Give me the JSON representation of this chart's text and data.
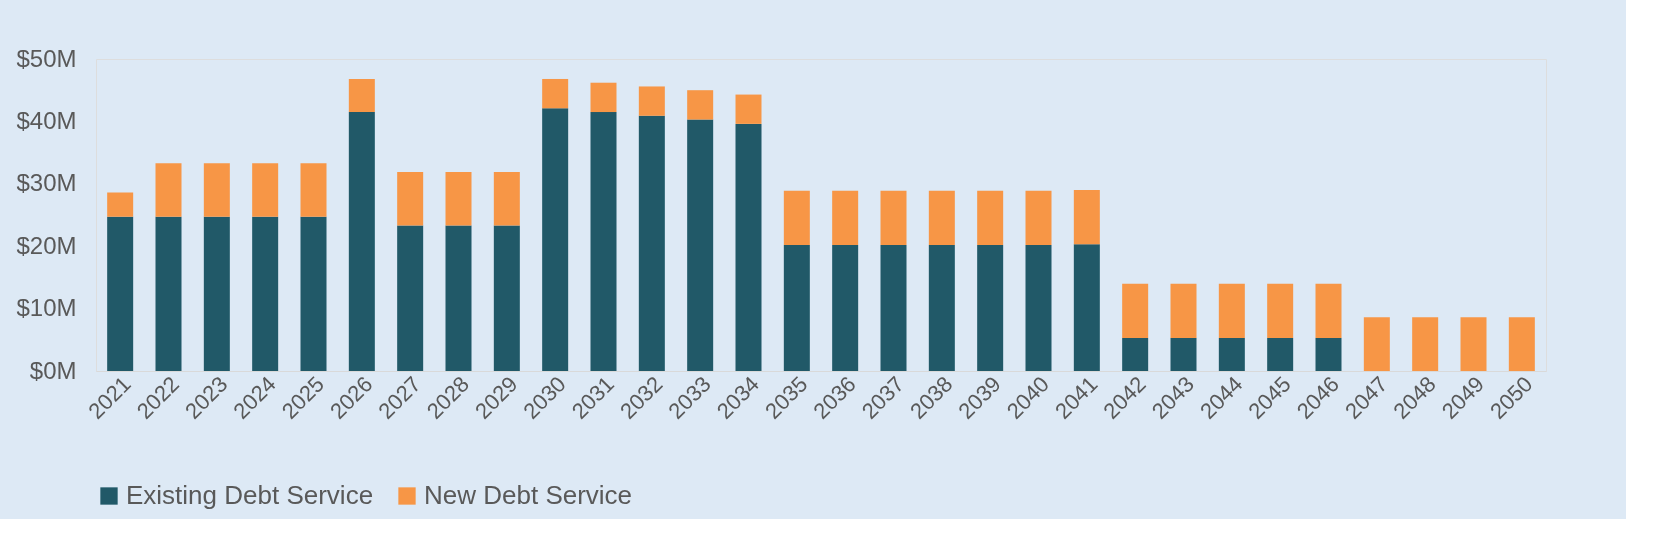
{
  "chart_data": {
    "type": "bar",
    "stacked": true,
    "categories": [
      "2021",
      "2022",
      "2023",
      "2024",
      "2025",
      "2026",
      "2027",
      "2028",
      "2029",
      "2030",
      "2031",
      "2032",
      "2033",
      "2034",
      "2035",
      "2036",
      "2037",
      "2038",
      "2039",
      "2040",
      "2041",
      "2042",
      "2043",
      "2044",
      "2045",
      "2046",
      "2047",
      "2048",
      "2049",
      "2050"
    ],
    "series": [
      {
        "name": "Existing Debt Service",
        "color": "#215968",
        "values": [
          24.7,
          24.7,
          24.7,
          24.7,
          24.7,
          41.5,
          23.3,
          23.3,
          23.3,
          42.1,
          41.5,
          40.9,
          40.3,
          39.6,
          20.2,
          20.2,
          20.2,
          20.2,
          20.2,
          20.2,
          20.3,
          5.3,
          5.3,
          5.3,
          5.3,
          5.3,
          0,
          0,
          0,
          0
        ]
      },
      {
        "name": "New Debt Service",
        "color": "#f79646",
        "values": [
          3.9,
          8.6,
          8.6,
          8.6,
          8.6,
          5.3,
          8.6,
          8.6,
          8.6,
          4.7,
          4.7,
          4.7,
          4.7,
          4.7,
          8.7,
          8.7,
          8.7,
          8.7,
          8.7,
          8.7,
          8.7,
          8.7,
          8.7,
          8.7,
          8.7,
          8.7,
          8.6,
          8.6,
          8.6,
          8.6
        ]
      }
    ],
    "ylim": [
      0,
      50
    ],
    "yticks": [
      {
        "value": 0,
        "label": "$0M"
      },
      {
        "value": 10,
        "label": "$10M"
      },
      {
        "value": 20,
        "label": "$20M"
      },
      {
        "value": 30,
        "label": "$30M"
      },
      {
        "value": 40,
        "label": "$40M"
      },
      {
        "value": 50,
        "label": "$50M"
      }
    ],
    "grid": false,
    "legend": "bottom"
  }
}
